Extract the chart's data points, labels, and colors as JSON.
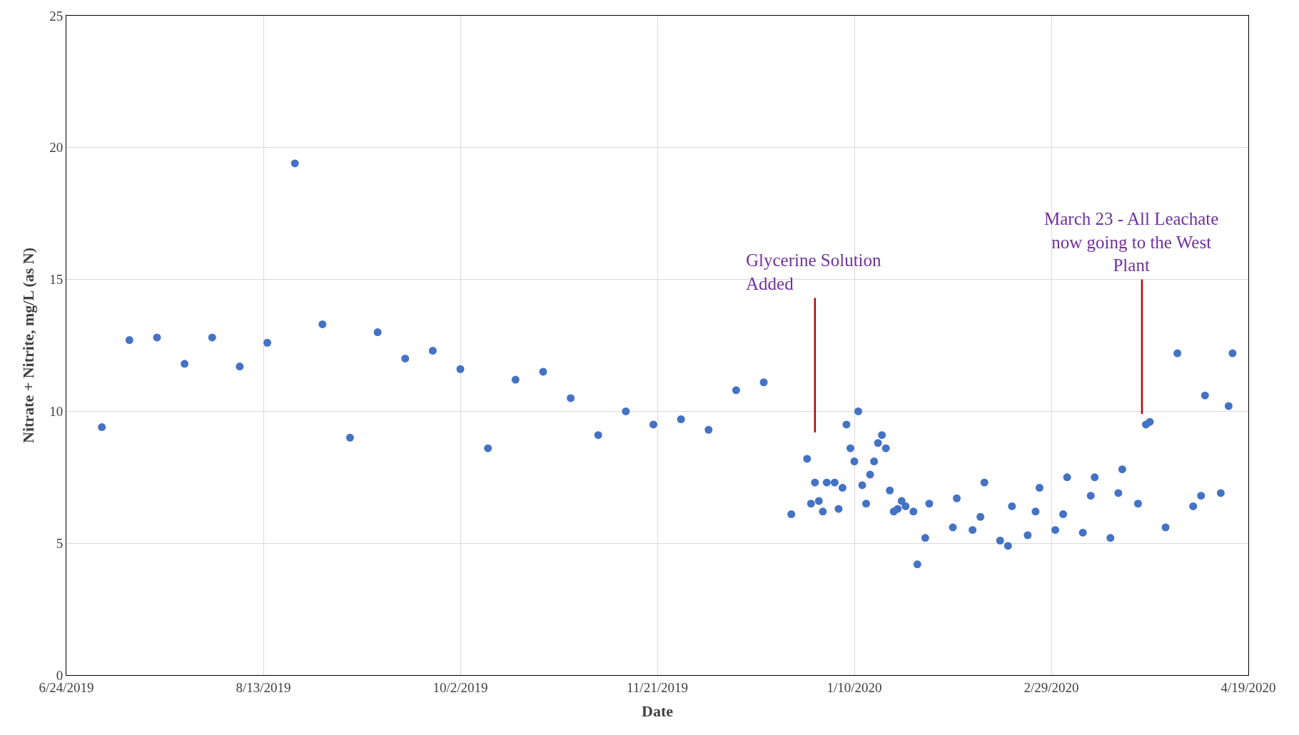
{
  "chart_data": {
    "type": "scatter",
    "xlabel": "Date",
    "ylabel": "Nitrate + Nitrite, mg/L (as N)",
    "x": [
      "2019-07-03",
      "2019-07-10",
      "2019-07-17",
      "2019-07-24",
      "2019-07-31",
      "2019-08-07",
      "2019-08-14",
      "2019-08-21",
      "2019-08-28",
      "2019-09-04",
      "2019-09-11",
      "2019-09-18",
      "2019-09-25",
      "2019-10-02",
      "2019-10-09",
      "2019-10-16",
      "2019-10-23",
      "2019-10-30",
      "2019-11-06",
      "2019-11-13",
      "2019-11-20",
      "2019-11-27",
      "2019-12-04",
      "2019-12-11",
      "2019-12-18",
      "2019-12-25",
      "2019-12-29",
      "2019-12-30",
      "2019-12-31",
      "2020-01-01",
      "2020-01-02",
      "2020-01-03",
      "2020-01-05",
      "2020-01-06",
      "2020-01-07",
      "2020-01-08",
      "2020-01-09",
      "2020-01-10",
      "2020-01-11",
      "2020-01-12",
      "2020-01-13",
      "2020-01-14",
      "2020-01-15",
      "2020-01-16",
      "2020-01-17",
      "2020-01-18",
      "2020-01-19",
      "2020-01-20",
      "2020-01-21",
      "2020-01-22",
      "2020-01-23",
      "2020-01-25",
      "2020-01-26",
      "2020-01-28",
      "2020-01-29",
      "2020-02-04",
      "2020-02-05",
      "2020-02-09",
      "2020-02-11",
      "2020-02-12",
      "2020-02-16",
      "2020-02-18",
      "2020-02-19",
      "2020-02-23",
      "2020-02-25",
      "2020-02-26",
      "2020-03-01",
      "2020-03-03",
      "2020-03-04",
      "2020-03-08",
      "2020-03-10",
      "2020-03-11",
      "2020-03-15",
      "2020-03-17",
      "2020-03-18",
      "2020-03-22",
      "2020-03-24",
      "2020-03-25",
      "2020-03-29",
      "2020-04-01",
      "2020-04-05",
      "2020-04-07",
      "2020-04-08",
      "2020-04-12",
      "2020-04-14",
      "2020-04-15"
    ],
    "series": [
      {
        "color": "#4472c4",
        "values": [
          9.4,
          12.7,
          12.8,
          11.8,
          12.8,
          11.7,
          12.6,
          19.4,
          13.3,
          9.0,
          13.0,
          12.0,
          12.3,
          11.6,
          8.6,
          11.2,
          11.5,
          10.5,
          9.1,
          10.0,
          9.5,
          9.7,
          9.3,
          10.8,
          11.1,
          6.1,
          8.2,
          6.5,
          7.3,
          6.6,
          6.2,
          7.3,
          7.3,
          6.3,
          7.1,
          9.5,
          8.6,
          8.1,
          10.0,
          7.2,
          6.5,
          7.6,
          8.1,
          8.8,
          9.1,
          8.6,
          7.0,
          6.2,
          6.3,
          6.6,
          6.4,
          6.2,
          4.2,
          5.2,
          6.5,
          5.6,
          6.7,
          5.5,
          6.0,
          7.3,
          5.1,
          4.9,
          6.4,
          5.3,
          6.2,
          7.1,
          5.5,
          6.1,
          7.5,
          5.4,
          6.8,
          7.5,
          5.2,
          6.9,
          7.8,
          6.5,
          9.5,
          9.6,
          5.6,
          12.2,
          6.4,
          6.8,
          10.6,
          6.9,
          10.2,
          12.2
        ]
      }
    ],
    "xlim": [
      "2019-06-24",
      "2020-04-19"
    ],
    "xticks": [
      {
        "value": "2019-06-24",
        "label": "6/24/2019"
      },
      {
        "value": "2019-08-13",
        "label": "8/13/2019"
      },
      {
        "value": "2019-10-02",
        "label": "10/2/2019"
      },
      {
        "value": "2019-11-21",
        "label": "11/21/2019"
      },
      {
        "value": "2020-01-10",
        "label": "1/10/2020"
      },
      {
        "value": "2020-02-29",
        "label": "2/29/2020"
      },
      {
        "value": "2020-04-19",
        "label": "4/19/2020"
      }
    ],
    "ylim": [
      0,
      25
    ],
    "yticks": [
      0,
      5,
      10,
      15,
      20,
      25
    ],
    "grid": true,
    "marker": "circle",
    "ref_lines": [
      {
        "axis": "x",
        "value": "2019-12-31",
        "label": "Glycerine Solution\nAdded",
        "color": "#c00000"
      },
      {
        "axis": "x",
        "value": "2020-03-23",
        "label": "March 23 - All Leachate\nnow going to the West\nPlant",
        "color": "#c00000"
      }
    ]
  }
}
